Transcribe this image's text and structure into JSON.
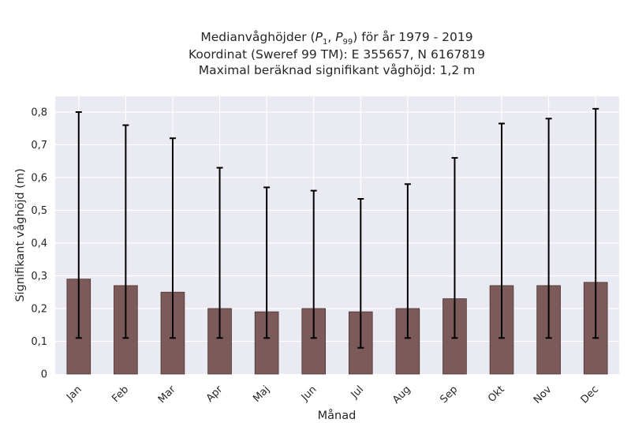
{
  "chart_data": {
    "type": "bar",
    "title_lines": [
      "Medianvåghöjder (P1, P99) för år 1979 - 2019",
      "Koordinat (Sweref 99 TM): E 355657, N 6167819",
      "Maximal beräknad signifikant våghöjd: 1,2 m"
    ],
    "xlabel": "Månad",
    "ylabel": "Signifikant våghöjd (m)",
    "categories": [
      "Jan",
      "Feb",
      "Mar",
      "Apr",
      "Maj",
      "Jun",
      "Jul",
      "Aug",
      "Sep",
      "Okt",
      "Nov",
      "Dec"
    ],
    "series": [
      {
        "values": [
          0.29,
          0.27,
          0.25,
          0.2,
          0.19,
          0.2,
          0.19,
          0.2,
          0.23,
          0.27,
          0.27,
          0.28
        ],
        "p1": [
          0.11,
          0.11,
          0.11,
          0.11,
          0.11,
          0.11,
          0.08,
          0.11,
          0.11,
          0.11,
          0.11,
          0.11
        ],
        "p99": [
          0.8,
          0.76,
          0.72,
          0.63,
          0.57,
          0.56,
          0.535,
          0.58,
          0.66,
          0.765,
          0.78,
          0.81
        ]
      }
    ],
    "ylim": [
      0,
      0.8
    ],
    "yticks": [
      "0",
      "0,1",
      "0,2",
      "0,3",
      "0,4",
      "0,5",
      "0,6",
      "0,7",
      "0,8"
    ],
    "grid": true,
    "legend": "none",
    "colors": {
      "bar_fill": "#7d5a5a",
      "bar_edge": "#4a3232",
      "error_bar": "#000000",
      "plot_background": "#eaeaf2",
      "grid": "#ffffff",
      "text": "#262626"
    }
  }
}
